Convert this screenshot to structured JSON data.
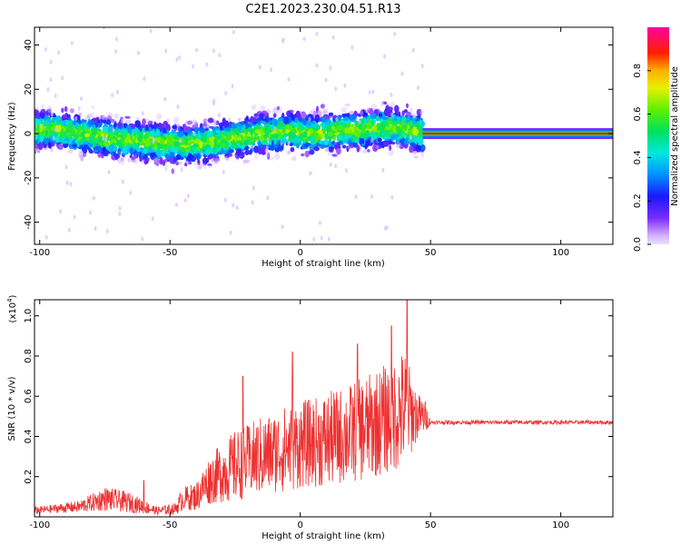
{
  "title": "C2E1.2023.230.04.51.R13",
  "colorbar": {
    "label": "Normalized spectral amplitude",
    "ticks": [
      "0.0",
      "0.2",
      "0.4",
      "0.6",
      "0.8"
    ],
    "tick_values": [
      0.0,
      0.2,
      0.4,
      0.6,
      0.8
    ],
    "range": [
      0,
      1
    ]
  },
  "chart_data": [
    {
      "type": "heatmap",
      "title": "C2E1.2023.230.04.51.R13",
      "xlabel": "Height of straight line (km)",
      "ylabel": "Frequency (Hz)",
      "xlim": [
        -102,
        120
      ],
      "ylim": [
        -50,
        48
      ],
      "x_ticks": [
        "-100",
        "-50",
        "0",
        "50",
        "100"
      ],
      "x_tick_values": [
        -100,
        -50,
        0,
        50,
        100
      ],
      "y_ticks": [
        "-40",
        "-20",
        "0",
        "20",
        "40"
      ],
      "y_tick_values": [
        -40,
        -20,
        0,
        20,
        40
      ],
      "colorscale": "rainbow",
      "ridge": {
        "x": [
          -102,
          -95,
          -85,
          -75,
          -65,
          -55,
          -45,
          -35,
          -25,
          -15,
          -5,
          5,
          15,
          25,
          35,
          45,
          48
        ],
        "y": [
          2,
          2,
          0,
          -2,
          -3,
          -4,
          -5,
          -4,
          -2,
          0,
          1,
          0,
          1,
          2,
          3,
          1,
          0
        ]
      },
      "band_after_x": 47,
      "band_freq": 0,
      "band_amplitude": 1.0
    },
    {
      "type": "line",
      "xlabel": "Height of straight line (km)",
      "ylabel": "SNR (10 * v/v)",
      "y_scale_label": "(x10",
      "y_scale_exp": "4",
      "y_scale_close": ")",
      "xlim": [
        -102,
        120
      ],
      "ylim": [
        0,
        1.08
      ],
      "x_ticks": [
        "-100",
        "-50",
        "0",
        "50",
        "100"
      ],
      "x_tick_values": [
        -100,
        -50,
        0,
        50,
        100
      ],
      "y_ticks": [
        "0.2",
        "0.4",
        "0.6",
        "0.8",
        "1.0"
      ],
      "y_tick_values": [
        0.2,
        0.4,
        0.6,
        0.8,
        1.0
      ],
      "color": "#ee3030",
      "series": [
        {
          "x": [
            -102,
            -95,
            -85,
            -75,
            -65,
            -55,
            -48,
            -45,
            -40,
            -35,
            -30,
            -25,
            -20,
            -15,
            -10,
            -5,
            0,
            5,
            10,
            15,
            20,
            25,
            30,
            35,
            40,
            45,
            48,
            50,
            60,
            70,
            80,
            90,
            100,
            110,
            120
          ],
          "y": [
            0.03,
            0.04,
            0.05,
            0.09,
            0.07,
            0.03,
            0.04,
            0.09,
            0.1,
            0.18,
            0.22,
            0.25,
            0.28,
            0.3,
            0.32,
            0.34,
            0.36,
            0.37,
            0.38,
            0.4,
            0.42,
            0.44,
            0.47,
            0.5,
            0.54,
            0.5,
            0.5,
            0.47,
            0.47,
            0.47,
            0.47,
            0.47,
            0.47,
            0.47,
            0.47
          ],
          "amplitude": [
            0.02,
            0.02,
            0.03,
            0.06,
            0.05,
            0.02,
            0.03,
            0.06,
            0.07,
            0.12,
            0.15,
            0.18,
            0.18,
            0.2,
            0.2,
            0.22,
            0.22,
            0.22,
            0.24,
            0.24,
            0.25,
            0.26,
            0.27,
            0.28,
            0.3,
            0.12,
            0.08,
            0.01,
            0.01,
            0.01,
            0.01,
            0.01,
            0.01,
            0.01,
            0.01
          ],
          "peaks": [
            [
              41,
              1.08
            ],
            [
              -22,
              0.7
            ],
            [
              -3,
              0.82
            ],
            [
              35,
              0.95
            ],
            [
              22,
              0.86
            ],
            [
              -60,
              0.18
            ]
          ]
        }
      ]
    }
  ]
}
